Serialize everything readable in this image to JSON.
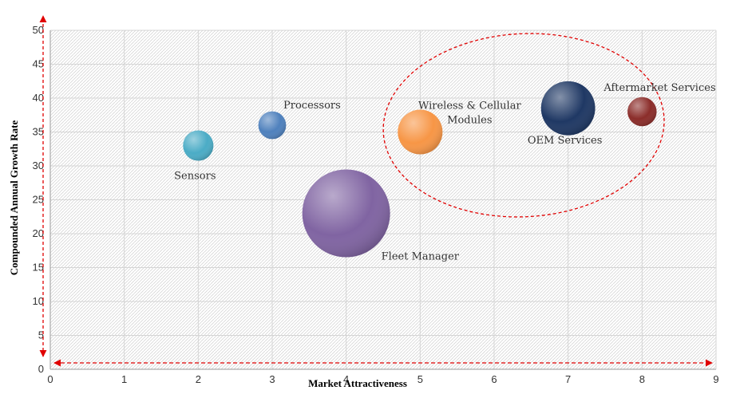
{
  "chart_data": {
    "type": "bubble",
    "xlabel": "Market Attractiveness",
    "ylabel": "Compounded Annual Growth Rate",
    "xlim": [
      0,
      9
    ],
    "ylim": [
      0,
      50
    ],
    "x_ticks": [
      "0",
      "1",
      "2",
      "3",
      "4",
      "5",
      "6",
      "7",
      "8",
      "9"
    ],
    "y_ticks": [
      "0",
      "5",
      "10",
      "15",
      "20",
      "25",
      "30",
      "35",
      "40",
      "45",
      "50"
    ],
    "grid": true,
    "background_pattern": "diagonal-hatch",
    "points": [
      {
        "label": "Sensors",
        "x": 2,
        "y": 33,
        "size": 12,
        "color": "#4bacc6"
      },
      {
        "label": "Processors",
        "x": 3,
        "y": 36,
        "size": 10,
        "color": "#4f81bd"
      },
      {
        "label": "Fleet Manager",
        "x": 4,
        "y": 23,
        "size": 100,
        "color": "#8064a2"
      },
      {
        "label": "Wireless & Cellular Modules",
        "x": 5,
        "y": 35,
        "size": 26,
        "color": "#f79646"
      },
      {
        "label": "OEM Services",
        "x": 7,
        "y": 38.5,
        "size": 38,
        "color": "#1f3864"
      },
      {
        "label": "Aftermarket Services",
        "x": 8,
        "y": 38,
        "size": 11,
        "color": "#8b2d2a"
      }
    ],
    "annotations": [
      {
        "type": "ellipse",
        "color": "#e00000",
        "style": "dashed",
        "center": [
          6.4,
          36
        ],
        "rx": 1.9,
        "ry": 13.5
      },
      {
        "type": "double-arrow",
        "axis": "y",
        "color": "#e00000",
        "style": "dashed"
      },
      {
        "type": "double-arrow",
        "axis": "x",
        "color": "#e00000",
        "style": "dashed"
      }
    ]
  }
}
